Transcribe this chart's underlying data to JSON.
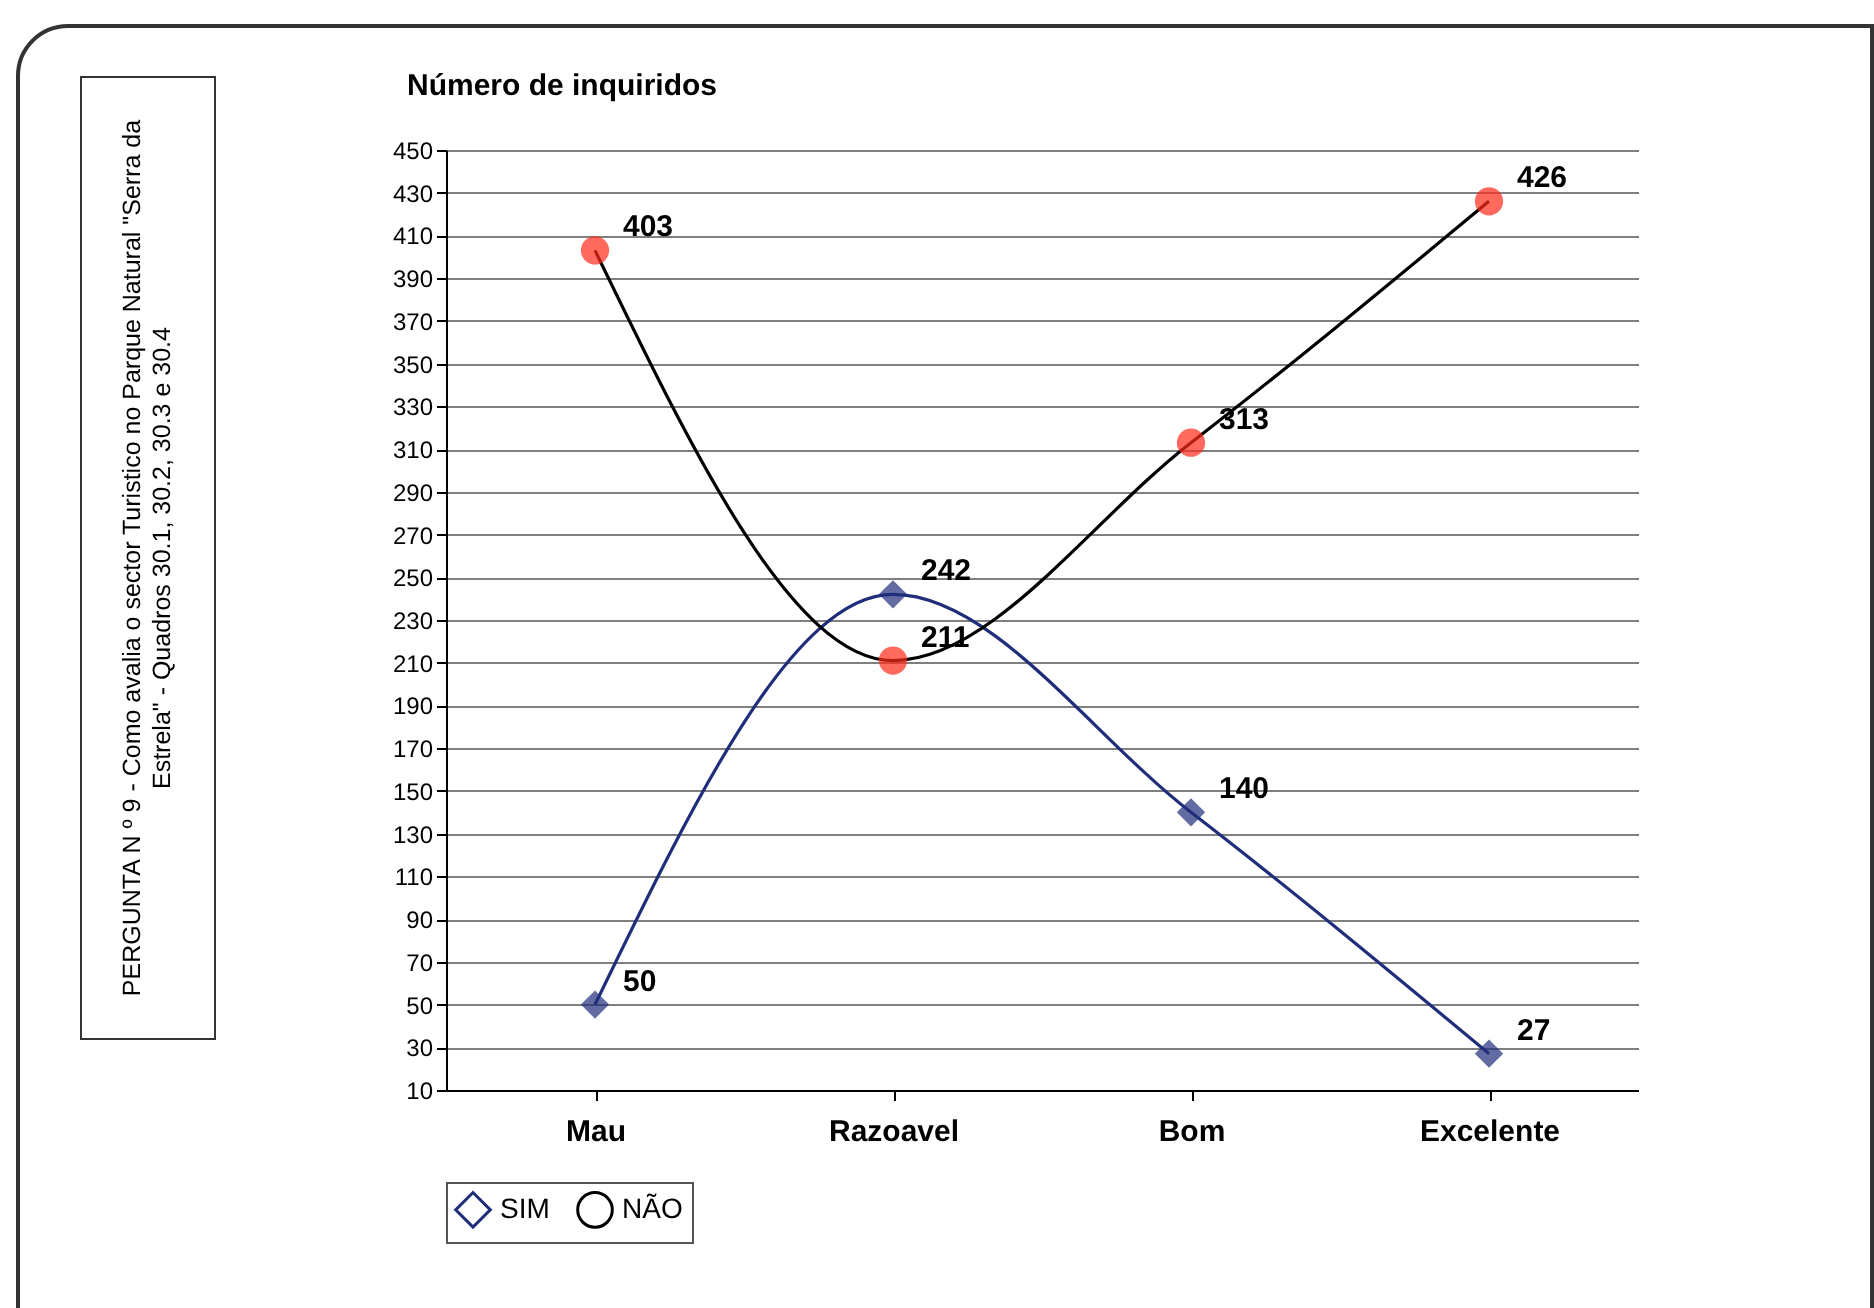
{
  "chart_data": {
    "type": "line",
    "ylabel": "Número de inquiridos",
    "annotations": [
      "PERGUNTA N º 9 - Como avalia o sector Turistico no Parque Natural \"Serra da Estrela\" - Quadros 30.1, 30.2, 30.3 e 30.4"
    ],
    "categories": [
      "Mau",
      "Razoavel",
      "Bom",
      "Excelente"
    ],
    "series": [
      {
        "name": "SIM",
        "color": "#1f2d7a",
        "marker": "diamond",
        "values": [
          50,
          242,
          140,
          27
        ]
      },
      {
        "name": "NÃO",
        "color": "#000000",
        "colors": [
          "#ff2a1a",
          "#ff2a1a",
          "#ff2a1a",
          "#ff2a1a"
        ],
        "marker": "circle",
        "values": [
          403,
          211,
          313,
          426
        ]
      }
    ],
    "ylim": [
      10,
      450
    ],
    "yticks": [
      10,
      30,
      50,
      70,
      90,
      110,
      130,
      150,
      170,
      190,
      210,
      230,
      250,
      270,
      290,
      310,
      330,
      350,
      370,
      390,
      410,
      430,
      450
    ],
    "grid": "y",
    "data_labels": true,
    "legend": "bottom"
  }
}
